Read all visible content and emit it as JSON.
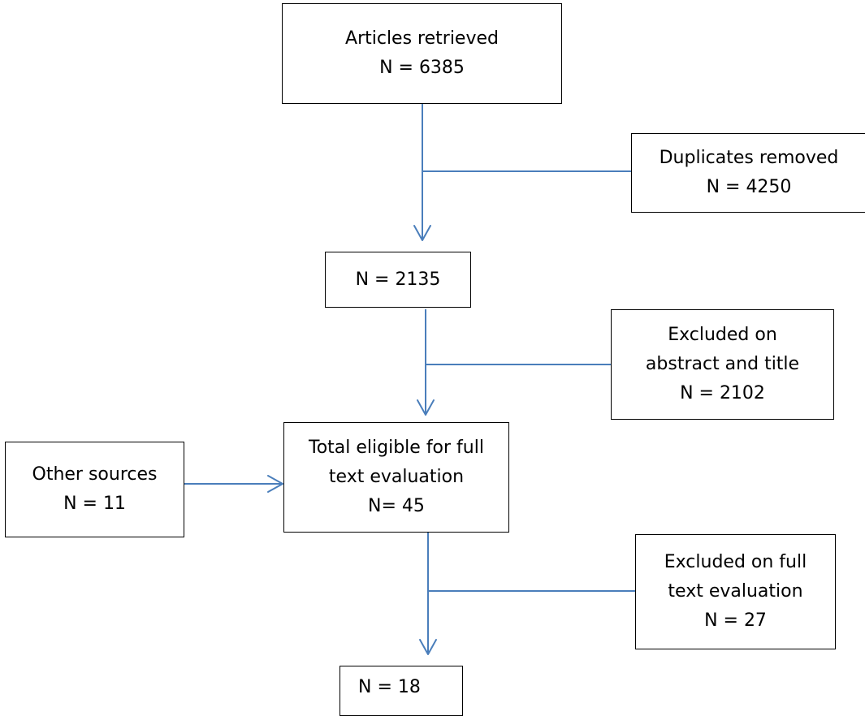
{
  "colors": {
    "connector": "#4a7ebb",
    "box_border": "#000000"
  },
  "boxes": {
    "articles_retrieved": {
      "lines": [
        "Articles retrieved",
        "N = 6385"
      ]
    },
    "duplicates_removed": {
      "lines": [
        "Duplicates removed",
        "N = 4250"
      ]
    },
    "after_duplicates": {
      "lines": [
        "N = 2135"
      ]
    },
    "excluded_abstract": {
      "lines": [
        "Excluded on",
        "abstract and title",
        "N = 2102"
      ]
    },
    "other_sources": {
      "lines": [
        "Other sources",
        "N = 11"
      ]
    },
    "full_text_eligible": {
      "lines": [
        "Total eligible for full",
        "text evaluation",
        "N= 45"
      ]
    },
    "excluded_full_text": {
      "lines": [
        "Excluded on full",
        "text evaluation",
        "N = 27"
      ]
    },
    "included": {
      "lines": [
        "N = 18"
      ]
    }
  }
}
